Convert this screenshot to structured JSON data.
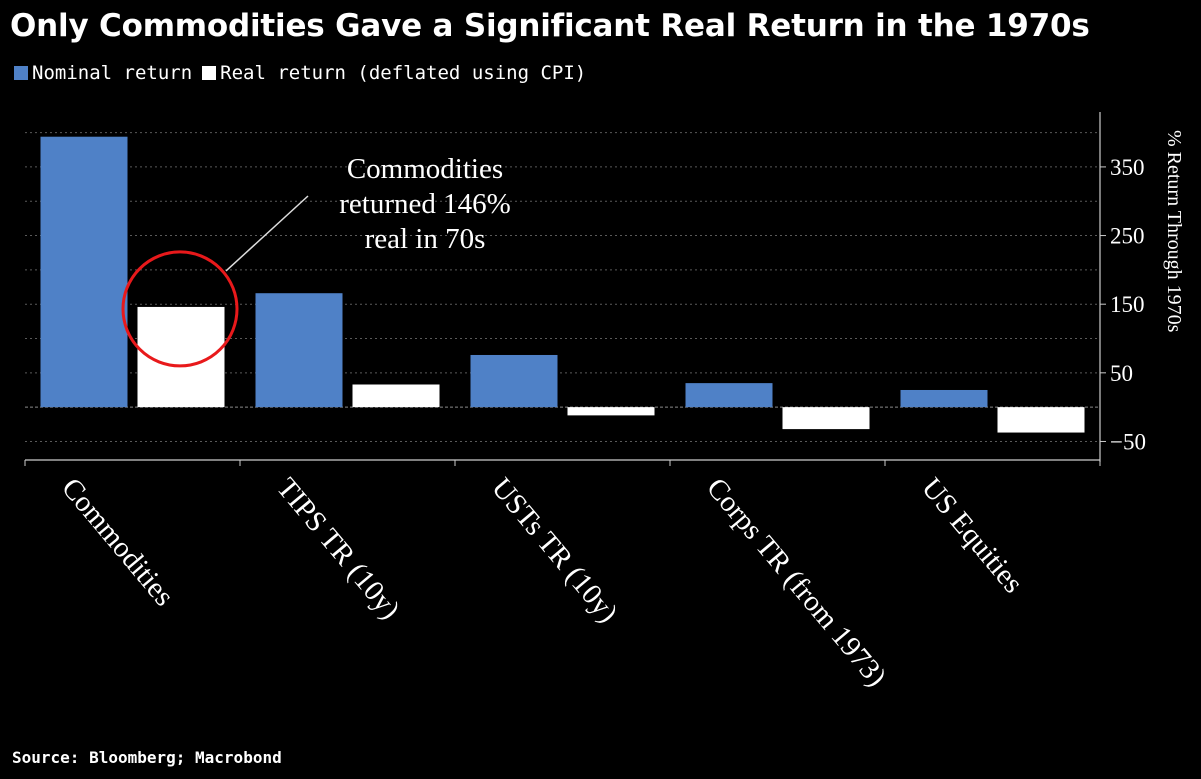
{
  "colors": {
    "background": "#000000",
    "nominal": "#4f81c7",
    "real": "#ffffff",
    "annotation_circle": "#e8191b",
    "grid": "#5a5a5a",
    "text": "#ffffff"
  },
  "source": "Source: Bloomberg; Macrobond",
  "chart_data": {
    "type": "bar",
    "title": "Only Commodities Gave a Significant Real Return in the 1970s",
    "categories": [
      "Commodities",
      "TIPS TR (10y)",
      "USTs TR (10y)",
      "Corps TR (from 1973)",
      "US Equities"
    ],
    "series": [
      {
        "name": "Nominal return",
        "values": [
          394,
          166,
          76,
          35,
          25
        ]
      },
      {
        "name": "Real return (deflated using CPI)",
        "values": [
          146,
          33,
          -12,
          -32,
          -37
        ]
      }
    ],
    "xlabel": "",
    "ylabel": "% Return Through 1970s",
    "ylim": [
      -77,
      430
    ],
    "yticks": [
      -50,
      50,
      150,
      250,
      350
    ],
    "y_axis_position": "right",
    "grid": true,
    "legend_position": "top-left",
    "annotation": {
      "lines": [
        "Commodities",
        "returned 146%",
        "real in 70s"
      ],
      "target_category": "Commodities",
      "target_series": "Real return (deflated using CPI)"
    }
  }
}
